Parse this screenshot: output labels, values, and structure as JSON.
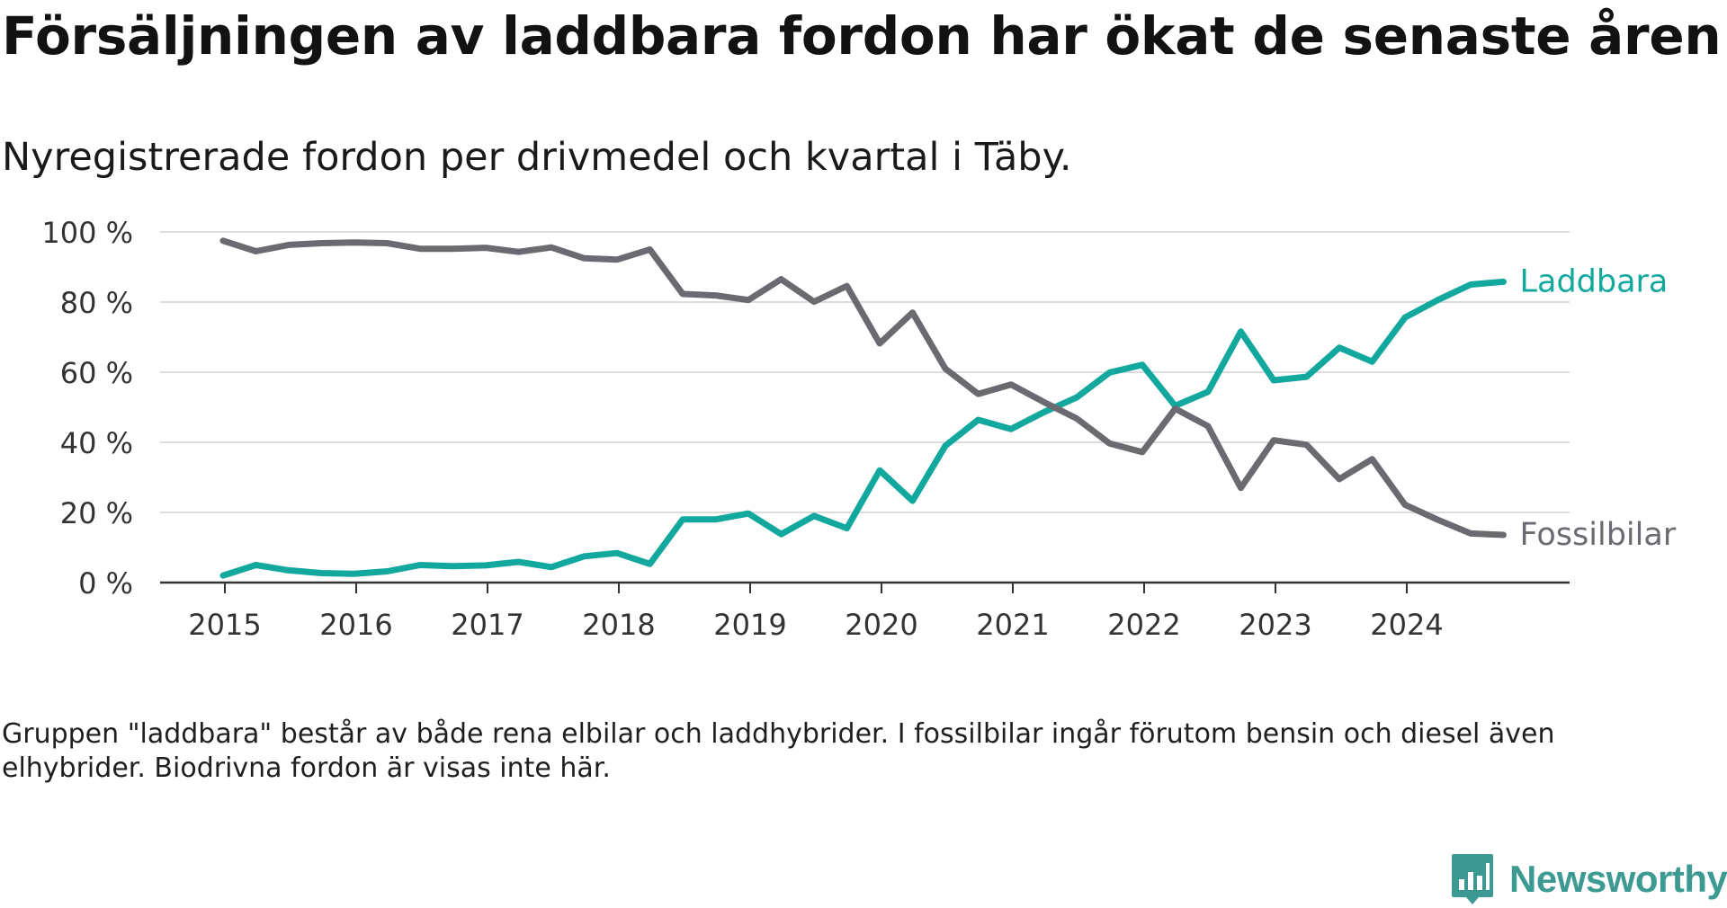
{
  "title": "Försäljningen av laddbara fordon har ökat de senaste åren",
  "subtitle": "Nyregistrerade fordon per drivmedel och kvartal i Täby.",
  "footnote": "Gruppen \"laddbara\" består av både rena elbilar och laddhybrider. I fossilbilar ingår förutom bensin och diesel även elhybrider. Biodrivna fordon är visas inte här.",
  "logo_text": "Newsworthy",
  "chart_data": {
    "type": "line",
    "title": "Försäljningen av laddbara fordon har ökat de senaste åren",
    "subtitle": "Nyregistrerade fordon per drivmedel och kvartal i Täby.",
    "xlabel": "",
    "ylabel": "",
    "ylim": [
      0,
      100
    ],
    "yticks": [
      0,
      20,
      40,
      60,
      80,
      100
    ],
    "ytick_labels": [
      "0 %",
      "20 %",
      "40 %",
      "60 %",
      "80 %",
      "100 %"
    ],
    "xtick_labels": [
      "2015",
      "2016",
      "2017",
      "2018",
      "2019",
      "2020",
      "2021",
      "2022",
      "2023",
      "2024"
    ],
    "grid": true,
    "legend_placement": "inline-right",
    "x": [
      "2015Q1",
      "2015Q2",
      "2015Q3",
      "2015Q4",
      "2016Q1",
      "2016Q2",
      "2016Q3",
      "2016Q4",
      "2017Q1",
      "2017Q2",
      "2017Q3",
      "2017Q4",
      "2018Q1",
      "2018Q2",
      "2018Q3",
      "2018Q4",
      "2019Q1",
      "2019Q2",
      "2019Q3",
      "2019Q4",
      "2020Q1",
      "2020Q2",
      "2020Q3",
      "2020Q4",
      "2021Q1",
      "2021Q2",
      "2021Q3",
      "2021Q4",
      "2022Q1",
      "2022Q2",
      "2022Q3",
      "2022Q4",
      "2023Q1",
      "2023Q2",
      "2023Q3",
      "2023Q4",
      "2024Q1",
      "2024Q2",
      "2024Q3",
      "2024Q4"
    ],
    "series": [
      {
        "name": "Laddbara",
        "color": "#13a89e",
        "values": [
          2,
          5,
          3.5,
          2.7,
          2.5,
          3.2,
          5,
          4.7,
          4.9,
          5.9,
          4.4,
          7.5,
          8.4,
          5.3,
          18,
          18,
          19.7,
          13.8,
          19,
          15.5,
          32,
          23.3,
          39,
          46.4,
          43.8,
          48.6,
          52.8,
          59.9,
          62.1,
          50.4,
          54.4,
          71.6,
          57.7,
          58.7,
          67,
          63,
          75.6,
          80.6,
          85,
          85.8
        ]
      },
      {
        "name": "Fossilbilar",
        "color": "#6b6a71",
        "values": [
          97.5,
          94.5,
          96.3,
          96.8,
          97,
          96.8,
          95.2,
          95.2,
          95.5,
          94.3,
          95.6,
          92.5,
          92.1,
          95,
          82.3,
          81.9,
          80.6,
          86.5,
          80.1,
          84.6,
          68.2,
          77,
          61,
          53.8,
          56.5,
          51.5,
          46.8,
          39.7,
          37.2,
          49.6,
          44.6,
          27,
          40.6,
          39.3,
          29.5,
          35.2,
          22.2,
          17.9,
          14,
          13.6
        ]
      }
    ]
  }
}
